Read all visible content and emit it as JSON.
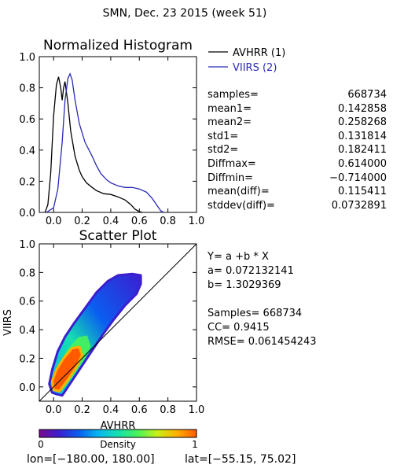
{
  "header": {
    "title": "SMN,  Dec. 23 2015 (week 51)"
  },
  "footer": {
    "lon_label": "lon=[−180.00, 180.00]",
    "lat_label": "lat=[−55.15, 75.02]"
  },
  "histogram_stats": [
    {
      "label": "samples=",
      "value": "668734"
    },
    {
      "label": "mean1=",
      "value": "0.142858"
    },
    {
      "label": "mean2=",
      "value": "0.258268"
    },
    {
      "label": "std1=",
      "value": "0.131814"
    },
    {
      "label": "std2=",
      "value": "0.182411"
    },
    {
      "label": "Diffmax=",
      "value": "0.614000"
    },
    {
      "label": "Diffmin=",
      "value": "−0.714000"
    },
    {
      "label": "mean(diff)=",
      "value": "0.115411"
    },
    {
      "label": "stddev(diff)=",
      "value": "0.0732891"
    }
  ],
  "scatter_stats": {
    "equation": "Y= a +b * X",
    "a": "a= 0.072132141",
    "b": "b= 1.3029369",
    "samples": "Samples= 668734",
    "cc": "CC=  0.9415",
    "rmse": "RMSE= 0.061454243"
  },
  "colors": {
    "avhrr": "#000000",
    "viirs": "#2a2ab4",
    "colorbar": [
      "#7a0a8c",
      "#3b1fd0",
      "#0a5ef0",
      "#08b6f0",
      "#15e0b0",
      "#49f25a",
      "#c8f01a",
      "#ffb000",
      "#ff5a00"
    ]
  },
  "colorbar": {
    "label": "Density",
    "min_label": "0",
    "max_label": "1"
  },
  "chart_data": [
    {
      "type": "line",
      "title": "Normalized Histogram",
      "xlim": [
        -0.1,
        1.0
      ],
      "ylim": [
        0.0,
        1.0
      ],
      "xticks": [
        "0.0",
        "0.2",
        "0.4",
        "0.6",
        "0.8",
        "1.0"
      ],
      "yticks": [
        "0.0",
        "0.2",
        "0.4",
        "0.6",
        "0.8",
        "1.0"
      ],
      "series": [
        {
          "name": "AVHRR (1)",
          "color": "#000000",
          "points": [
            [
              -0.06,
              0.0
            ],
            [
              -0.04,
              0.05
            ],
            [
              -0.02,
              0.25
            ],
            [
              0.0,
              0.62
            ],
            [
              0.02,
              0.82
            ],
            [
              0.035,
              0.87
            ],
            [
              0.05,
              0.8
            ],
            [
              0.06,
              0.72
            ],
            [
              0.07,
              0.8
            ],
            [
              0.08,
              0.84
            ],
            [
              0.1,
              0.7
            ],
            [
              0.12,
              0.52
            ],
            [
              0.15,
              0.36
            ],
            [
              0.18,
              0.27
            ],
            [
              0.2,
              0.23
            ],
            [
              0.23,
              0.19
            ],
            [
              0.27,
              0.16
            ],
            [
              0.3,
              0.14
            ],
            [
              0.35,
              0.12
            ],
            [
              0.4,
              0.115
            ],
            [
              0.45,
              0.1
            ],
            [
              0.5,
              0.08
            ],
            [
              0.54,
              0.05
            ],
            [
              0.57,
              0.02
            ],
            [
              0.6,
              0.005
            ],
            [
              0.62,
              0.0
            ]
          ]
        },
        {
          "name": "VIIRS (2)",
          "color": "#2a2ab4",
          "points": [
            [
              -0.05,
              0.0
            ],
            [
              0.0,
              0.03
            ],
            [
              0.03,
              0.15
            ],
            [
              0.06,
              0.45
            ],
            [
              0.08,
              0.72
            ],
            [
              0.1,
              0.86
            ],
            [
              0.115,
              0.89
            ],
            [
              0.13,
              0.85
            ],
            [
              0.15,
              0.72
            ],
            [
              0.18,
              0.57
            ],
            [
              0.22,
              0.45
            ],
            [
              0.27,
              0.36
            ],
            [
              0.3,
              0.3
            ],
            [
              0.33,
              0.25
            ],
            [
              0.37,
              0.21
            ],
            [
              0.4,
              0.19
            ],
            [
              0.45,
              0.17
            ],
            [
              0.5,
              0.16
            ],
            [
              0.55,
              0.16
            ],
            [
              0.6,
              0.15
            ],
            [
              0.65,
              0.13
            ],
            [
              0.69,
              0.09
            ],
            [
              0.72,
              0.05
            ],
            [
              0.75,
              0.01
            ],
            [
              0.77,
              0.0
            ]
          ]
        }
      ]
    },
    {
      "type": "scatter",
      "title": "Scatter Plot",
      "xlabel": "AVHRR",
      "ylabel": "VIIRS",
      "xlim": [
        -0.1,
        1.0
      ],
      "ylim": [
        -0.1,
        1.0
      ],
      "xticks": [
        "0.0",
        "0.2",
        "0.4",
        "0.6",
        "0.8",
        "1.0"
      ],
      "yticks": [
        "0.0",
        "0.2",
        "0.4",
        "0.6",
        "0.8",
        "1.0"
      ],
      "fit": {
        "a": 0.072132141,
        "b": 1.3029369
      },
      "density_outline": [
        [
          0.02,
          -0.05
        ],
        [
          0.06,
          -0.06
        ],
        [
          0.1,
          0.0
        ],
        [
          0.18,
          0.12
        ],
        [
          0.26,
          0.24
        ],
        [
          0.34,
          0.36
        ],
        [
          0.42,
          0.47
        ],
        [
          0.5,
          0.57
        ],
        [
          0.58,
          0.65
        ],
        [
          0.61,
          0.72
        ],
        [
          0.61,
          0.78
        ],
        [
          0.55,
          0.79
        ],
        [
          0.45,
          0.78
        ],
        [
          0.38,
          0.74
        ],
        [
          0.3,
          0.66
        ],
        [
          0.22,
          0.55
        ],
        [
          0.14,
          0.44
        ],
        [
          0.08,
          0.35
        ],
        [
          0.03,
          0.25
        ],
        [
          -0.01,
          0.12
        ],
        [
          -0.03,
          0.02
        ],
        [
          -0.01,
          -0.04
        ]
      ],
      "density_core": [
        [
          0.0,
          -0.02
        ],
        [
          0.04,
          -0.03
        ],
        [
          0.1,
          0.05
        ],
        [
          0.16,
          0.14
        ],
        [
          0.2,
          0.22
        ],
        [
          0.18,
          0.28
        ],
        [
          0.13,
          0.27
        ],
        [
          0.07,
          0.2
        ],
        [
          0.02,
          0.12
        ],
        [
          -0.01,
          0.04
        ]
      ]
    }
  ]
}
